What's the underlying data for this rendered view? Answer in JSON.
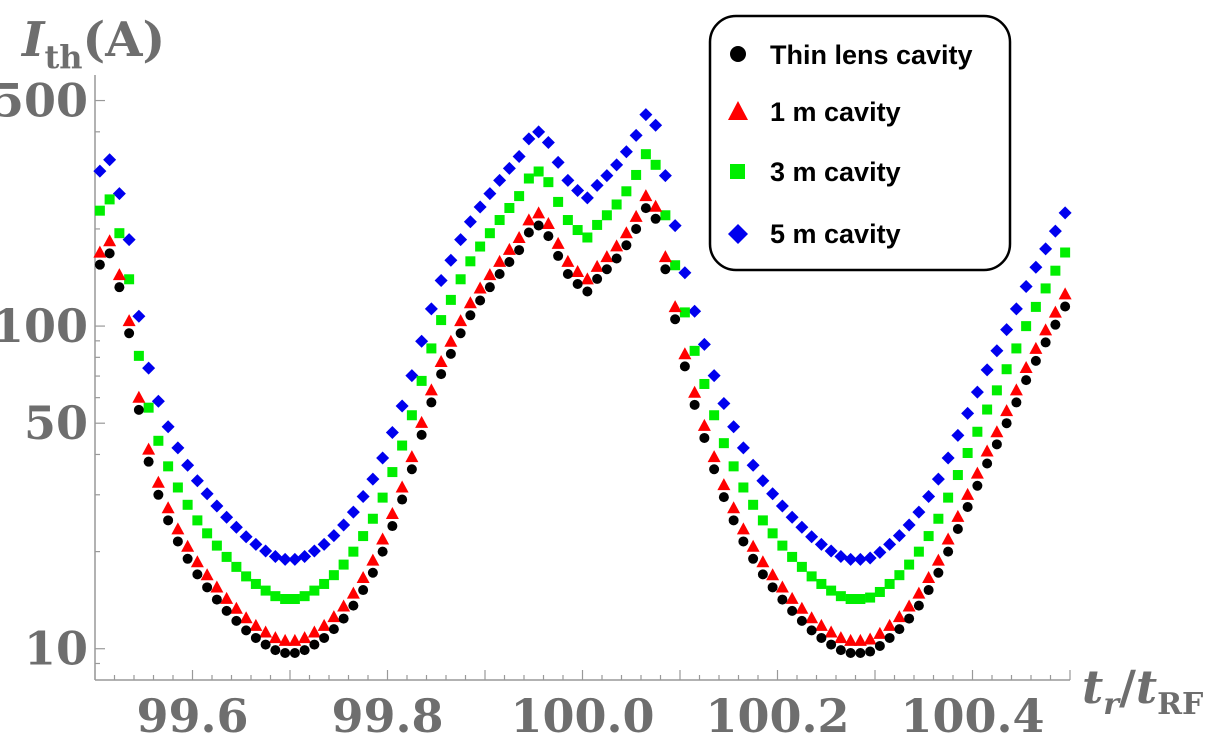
{
  "chart_data": {
    "type": "scatter",
    "y_scale": "log",
    "title": "",
    "ylabel": {
      "main": "I",
      "sub": "th",
      "unit": "(A)"
    },
    "xlabel": {
      "num": "t",
      "num_sub": "r",
      "den": "t",
      "den_sub": "RF"
    },
    "xlim": [
      99.5,
      100.5
    ],
    "ylim": [
      8.0,
      600
    ],
    "x_ticks": [
      99.6,
      99.8,
      100.0,
      100.2,
      100.4
    ],
    "x_tick_labels": [
      "99.6",
      "99.8",
      "100.0",
      "100.2",
      "100.4"
    ],
    "y_ticks": [
      10,
      50,
      100,
      500
    ],
    "y_tick_labels": [
      "10",
      "50",
      "100",
      "500"
    ],
    "legend_position": "top-right",
    "series": [
      {
        "name": "Thin lens cavity",
        "marker": "circle",
        "color": "#000000",
        "scale": 1.0
      },
      {
        "name": "1 m cavity",
        "marker": "triangle",
        "color": "#ff0000",
        "scale": 1.09
      },
      {
        "name": "3 m cavity",
        "marker": "square",
        "color": "#00ee00",
        "scale": 1.47
      },
      {
        "name": "5 m cavity",
        "marker": "diamond",
        "color": "#0000ee",
        "scale": 1.95
      }
    ],
    "x": [
      99.505,
      99.515,
      99.525,
      99.535,
      99.545,
      99.555,
      99.565,
      99.575,
      99.585,
      99.595,
      99.605,
      99.615,
      99.625,
      99.635,
      99.645,
      99.655,
      99.665,
      99.675,
      99.685,
      99.695,
      99.705,
      99.715,
      99.725,
      99.735,
      99.745,
      99.755,
      99.765,
      99.775,
      99.785,
      99.795,
      99.805,
      99.815,
      99.825,
      99.835,
      99.845,
      99.855,
      99.865,
      99.875,
      99.885,
      99.895,
      99.905,
      99.915,
      99.925,
      99.935,
      99.945,
      99.955,
      99.965,
      99.975,
      99.985,
      99.995,
      100.005,
      100.015,
      100.025,
      100.035,
      100.045,
      100.055,
      100.065,
      100.075,
      100.085,
      100.095,
      100.105,
      100.115,
      100.125,
      100.135,
      100.145,
      100.155,
      100.165,
      100.175,
      100.185,
      100.195,
      100.205,
      100.215,
      100.225,
      100.235,
      100.245,
      100.255,
      100.265,
      100.275,
      100.285,
      100.295,
      100.305,
      100.315,
      100.325,
      100.335,
      100.345,
      100.355,
      100.365,
      100.375,
      100.385,
      100.395,
      100.405,
      100.415,
      100.425,
      100.435,
      100.445,
      100.455,
      100.465,
      100.475,
      100.485,
      100.495
    ],
    "base_values": [
      155,
      168,
      132,
      95,
      55,
      38,
      30,
      25,
      21.5,
      19,
      17,
      15.5,
      14.2,
      13.1,
      12.2,
      11.4,
      10.8,
      10.3,
      9.9,
      9.7,
      9.7,
      9.9,
      10.3,
      10.8,
      11.5,
      12.4,
      13.6,
      15.2,
      17.2,
      20,
      24,
      29,
      36,
      46,
      58,
      71,
      82,
      95,
      108,
      120,
      132,
      145,
      158,
      172,
      195,
      205,
      190,
      165,
      145,
      135,
      128,
      140,
      150,
      162,
      178,
      200,
      232,
      215,
      150,
      105,
      75,
      57,
      45,
      36,
      29.5,
      25,
      21.5,
      19,
      17,
      15.5,
      14.2,
      13.1,
      12.2,
      11.4,
      10.8,
      10.3,
      9.9,
      9.7,
      9.7,
      9.8,
      10.2,
      10.8,
      11.5,
      12.4,
      13.6,
      15.2,
      17.2,
      20,
      23.5,
      27.5,
      32,
      37.5,
      43,
      50,
      58,
      68,
      78,
      89,
      101,
      115
    ]
  },
  "legend": {
    "items": [
      {
        "label": "Thin lens cavity"
      },
      {
        "label": "1 m cavity"
      },
      {
        "label": "3 m cavity"
      },
      {
        "label": "5 m cavity"
      }
    ]
  }
}
